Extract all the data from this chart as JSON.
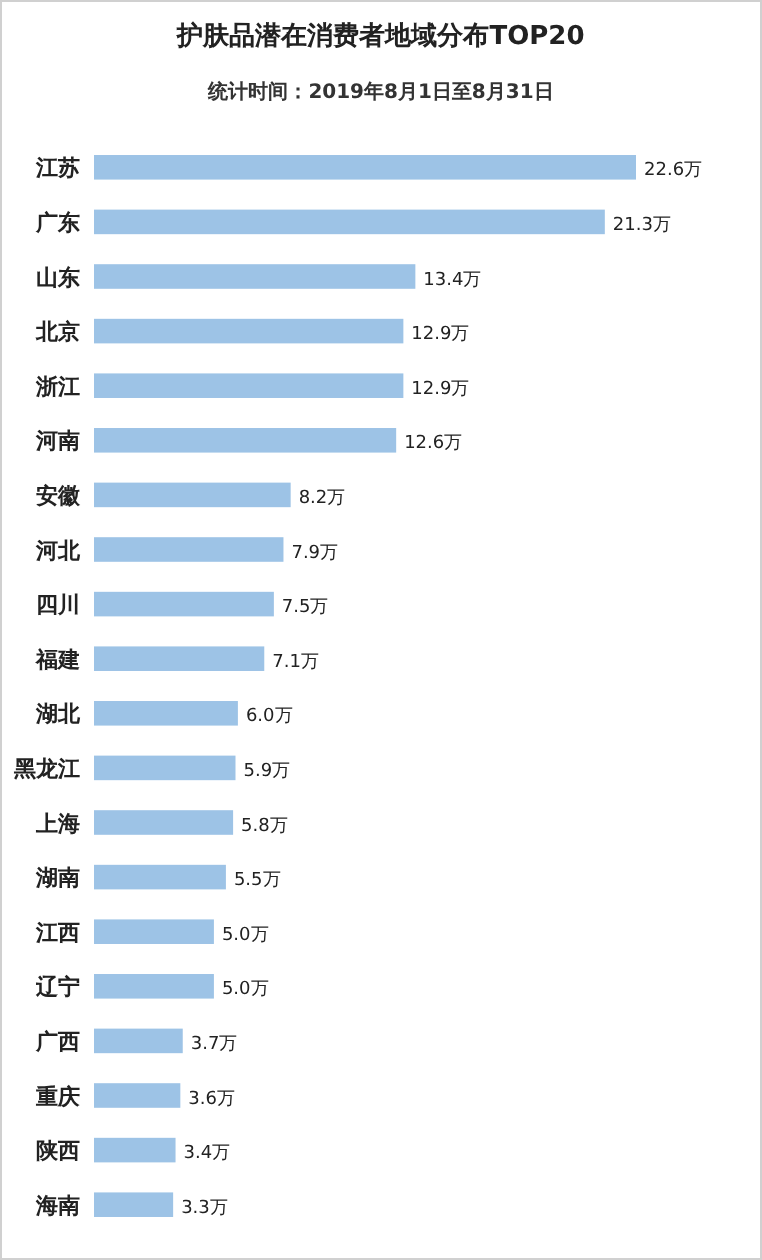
{
  "chart_data": {
    "type": "bar",
    "orientation": "horizontal",
    "title": "护肤品潜在消费者地域分布TOP20",
    "subtitle": "统计时间：2019年8月1日至8月31日",
    "categories": [
      "江苏",
      "广东",
      "山东",
      "北京",
      "浙江",
      "河南",
      "安徽",
      "河北",
      "四川",
      "福建",
      "湖北",
      "黑龙江",
      "上海",
      "湖南",
      "江西",
      "辽宁",
      "广西",
      "重庆",
      "陕西",
      "海南"
    ],
    "values": [
      22.6,
      21.3,
      13.4,
      12.9,
      12.9,
      12.6,
      8.2,
      7.9,
      7.5,
      7.1,
      6.0,
      5.9,
      5.8,
      5.5,
      5.0,
      5.0,
      3.7,
      3.6,
      3.4,
      3.3
    ],
    "value_labels": [
      "22.6万",
      "21.3万",
      "13.4万",
      "12.9万",
      "12.9万",
      "12.6万",
      "8.2万",
      "7.9万",
      "7.5万",
      "7.1万",
      "6.0万",
      "5.9万",
      "5.8万",
      "5.5万",
      "5.0万",
      "5.0万",
      "3.7万",
      "3.6万",
      "3.4万",
      "3.3万"
    ],
    "color": "#9dc3e6"
  }
}
